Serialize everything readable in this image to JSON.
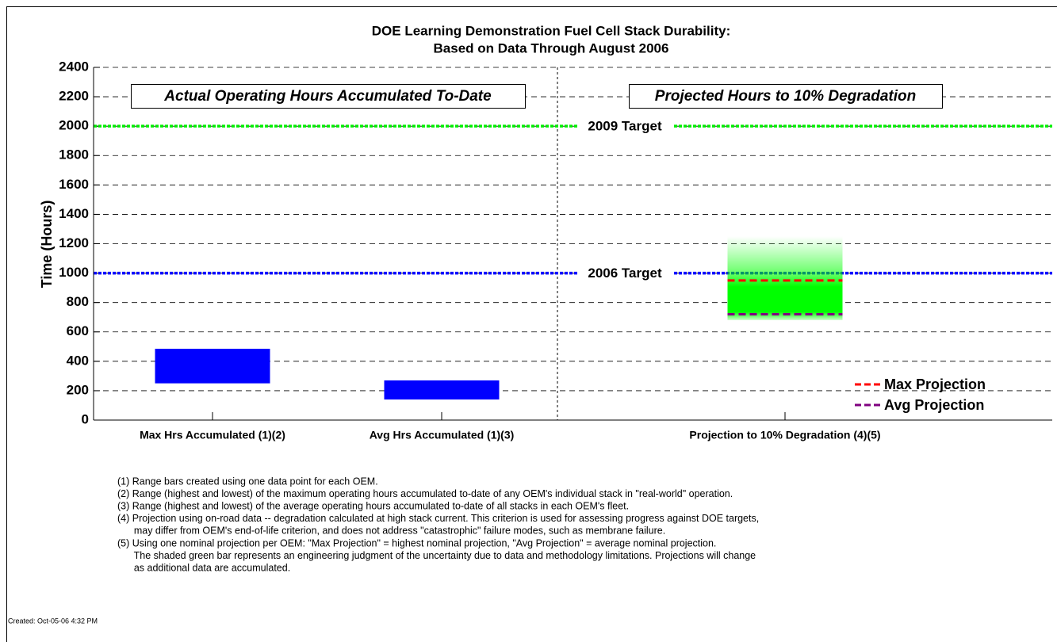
{
  "chart_data": {
    "type": "range_bar",
    "title": "DOE Learning Demonstration Fuel Cell Stack Durability:",
    "subtitle": "Based on Data Through August 2006",
    "y_label": "Time (Hours)",
    "ylim": [
      0,
      2400
    ],
    "yticks": [
      0,
      200,
      400,
      600,
      800,
      1000,
      1200,
      1400,
      1600,
      1800,
      2000,
      2200,
      2400
    ],
    "grid": true,
    "categories": [
      "Max Hrs Accumulated (1)(2)",
      "Avg Hrs Accumulated (1)(3)",
      "Projection to 10% Degradation (4)(5)"
    ],
    "ranges": [
      {
        "low": 250,
        "high": 485,
        "color": "#0000ff"
      },
      {
        "low": 140,
        "high": 270,
        "color": "#0000ff"
      }
    ],
    "uncertainty": {
      "low": 680,
      "high": 1250,
      "color": "#00ff00"
    },
    "series": [
      {
        "name": "Max Projection",
        "color": "#ff0000",
        "value": 950
      },
      {
        "name": "Avg Projection",
        "color": "#800080",
        "value": 720
      }
    ],
    "legend": "lower right",
    "targets": [
      {
        "label": "2009 Target",
        "value": 2000,
        "color": "#00ee00"
      },
      {
        "label": "2006 Target",
        "value": 1000,
        "color": "#0000ff"
      }
    ],
    "panel_labels": [
      "Actual Operating Hours Accumulated To-Date",
      "Projected Hours to 10% Degradation"
    ],
    "footnotes": [
      "(1) Range bars created using one data point for each OEM.",
      "(2) Range (highest and lowest) of the maximum operating hours accumulated to-date of any OEM's individual stack in \"real-world\" operation.",
      "(3) Range (highest and lowest) of the average operating hours accumulated to-date of all stacks in each OEM's fleet.",
      "(4) Projection using on-road data -- degradation calculated at high stack current. This criterion is used for assessing progress against DOE targets,",
      "      may differ from OEM's end-of-life criterion, and does not address \"catastrophic\" failure modes, such as membrane failure.",
      "(5) Using one nominal projection per OEM: \"Max Projection\" = highest nominal projection, \"Avg Projection\" = average nominal projection.",
      "      The shaded green bar represents an engineering judgment of the uncertainty due to data and methodology limitations. Projections will change",
      "      as additional data are accumulated."
    ],
    "created": "Created: Oct-05-06  4:32 PM"
  }
}
